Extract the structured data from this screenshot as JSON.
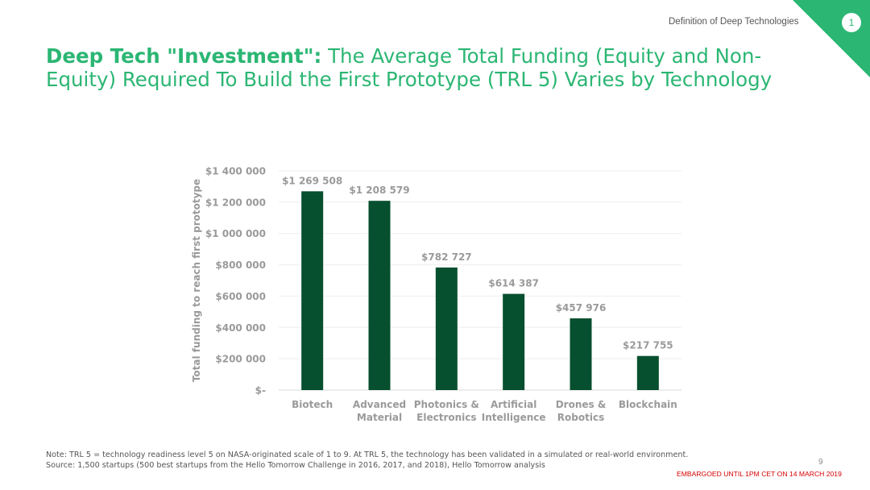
{
  "header": {
    "section_label": "Definition of Deep Technologies",
    "section_number": "1",
    "accent_color": "#2bb673"
  },
  "title": {
    "bold_part": "Deep Tech \"Investment\":",
    "regular_part": " The Average Total Funding (Equity and Non-Equity) Required To Build the First Prototype (TRL 5) Varies by Technology"
  },
  "chart_data": {
    "type": "bar",
    "categories": [
      [
        "Biotech"
      ],
      [
        "Advanced",
        "Material"
      ],
      [
        "Photonics &",
        "Electronics"
      ],
      [
        "Artificial",
        "Intelligence"
      ],
      [
        "Drones &",
        "Robotics"
      ],
      [
        "Blockchain"
      ]
    ],
    "values": [
      1269508,
      1208579,
      782727,
      614387,
      457976,
      217755
    ],
    "data_labels": [
      "$1 269 508",
      "$1 208 579",
      "$782 727",
      "$614 387",
      "$457 976",
      "$217 755"
    ],
    "ylabel": "Total funding to reach first prototype",
    "ylim": [
      0,
      1400000
    ],
    "yticks": [
      0,
      200000,
      400000,
      600000,
      800000,
      1000000,
      1200000,
      1400000
    ],
    "ytick_labels": [
      "$-",
      "$200 000",
      "$400 000",
      "$600 000",
      "$800 000",
      "$1 000 000",
      "$1 200 000",
      "$1 400 000"
    ],
    "grid": true,
    "bar_color": "#064f2f"
  },
  "footer": {
    "note": "Note: TRL 5 = technology readiness level 5 on NASA-originated scale of 1 to 9.  At TRL 5, the technology has been validated in a simulated or real-world environment.",
    "source": "Source: 1,500 startups (500 best startups from the Hello Tomorrow Challenge in 2016, 2017, and 2018), Hello Tomorrow analysis",
    "page_number": "9",
    "embargo": "EMBARGOED UNTIL 1PM CET ON 14 MARCH 2019"
  }
}
